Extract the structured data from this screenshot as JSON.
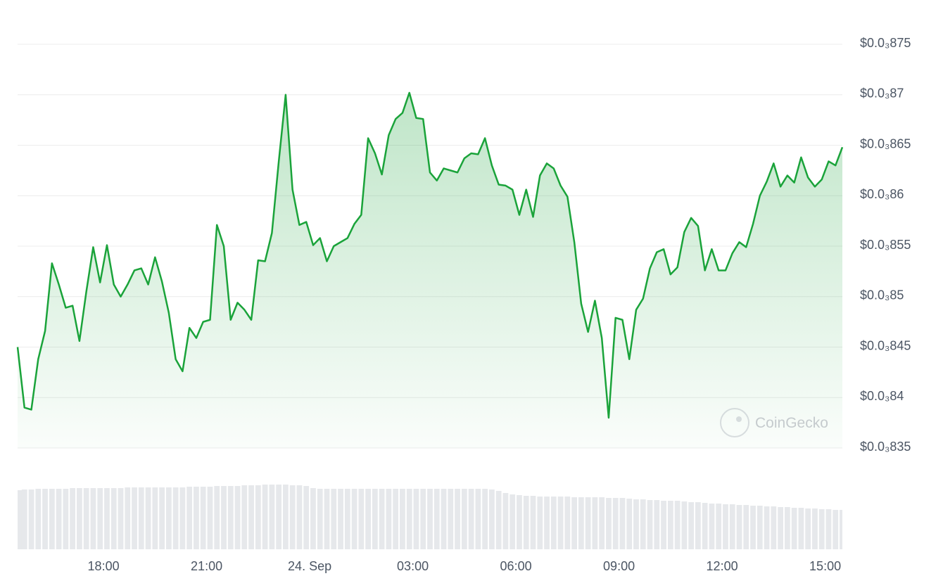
{
  "chart_data": {
    "type": "line",
    "x": [
      15.5,
      15.7,
      15.9,
      16.1,
      16.3,
      16.5,
      16.7,
      16.9,
      17.1,
      17.3,
      17.5,
      17.7,
      17.9,
      18.1,
      18.3,
      18.5,
      18.7,
      18.9,
      19.1,
      19.3,
      19.5,
      19.7,
      19.9,
      20.1,
      20.3,
      20.5,
      20.7,
      20.9,
      21.1,
      21.3,
      21.5,
      21.7,
      21.9,
      22.1,
      22.3,
      22.5,
      22.7,
      22.9,
      23.1,
      23.3,
      23.5,
      23.7,
      23.9,
      24.1,
      24.3,
      24.5,
      24.7,
      24.9,
      25.1,
      25.3,
      25.5,
      25.7,
      25.9,
      26.1,
      26.3,
      26.5,
      26.7,
      26.9,
      27.1,
      27.3,
      27.5,
      27.7,
      27.9,
      28.1,
      28.3,
      28.5,
      28.7,
      28.9,
      29.1,
      29.3,
      29.5,
      29.7,
      29.9,
      30.1,
      30.3,
      30.5,
      30.7,
      30.9,
      31.1,
      31.3,
      31.5,
      31.7,
      31.9,
      32.1,
      32.3,
      32.5,
      32.7,
      32.9,
      33.1,
      33.3,
      33.5,
      33.7,
      33.9,
      34.1,
      34.3,
      34.5,
      34.7,
      34.9,
      35.1,
      35.3,
      35.5,
      35.7,
      35.9,
      36.1,
      36.3,
      36.5,
      36.7,
      36.9,
      37.1,
      37.3,
      37.5,
      37.7,
      37.9,
      38.1,
      38.3,
      38.5,
      38.7,
      38.9,
      39.1,
      39.3,
      39.5
    ],
    "values": [
      0.000845,
      0.000839,
      0.0008388,
      0.0008438,
      0.0008466,
      0.0008533,
      0.0008512,
      0.0008489,
      0.0008491,
      0.0008456,
      0.0008505,
      0.0008549,
      0.0008514,
      0.0008551,
      0.0008512,
      0.00085,
      0.0008512,
      0.0008526,
      0.0008528,
      0.0008512,
      0.0008539,
      0.0008515,
      0.0008484,
      0.0008438,
      0.0008426,
      0.0008469,
      0.0008459,
      0.0008475,
      0.0008477,
      0.0008571,
      0.000855,
      0.0008477,
      0.0008494,
      0.0008487,
      0.0008477,
      0.0008536,
      0.0008535,
      0.0008563,
      0.0008634,
      0.00087,
      0.0008606,
      0.0008571,
      0.0008574,
      0.0008551,
      0.0008558,
      0.0008535,
      0.000855,
      0.0008554,
      0.0008558,
      0.0008572,
      0.0008581,
      0.0008657,
      0.0008642,
      0.0008621,
      0.000866,
      0.0008676,
      0.0008682,
      0.0008702,
      0.0008677,
      0.0008676,
      0.0008623,
      0.0008615,
      0.0008627,
      0.0008625,
      0.0008623,
      0.0008637,
      0.0008642,
      0.0008641,
      0.0008657,
      0.000863,
      0.0008611,
      0.000861,
      0.0008606,
      0.0008581,
      0.0008606,
      0.0008579,
      0.000862,
      0.0008632,
      0.0008627,
      0.000861,
      0.0008599,
      0.0008554,
      0.0008493,
      0.0008465,
      0.0008496,
      0.0008459,
      0.000838,
      0.0008479,
      0.0008477,
      0.0008438,
      0.0008487,
      0.0008498,
      0.0008528,
      0.0008544,
      0.0008547,
      0.0008522,
      0.0008529,
      0.0008564,
      0.0008578,
      0.000857,
      0.0008526,
      0.0008547,
      0.0008526,
      0.0008526,
      0.0008543,
      0.0008554,
      0.0008549,
      0.0008572,
      0.00086,
      0.0008614,
      0.0008632,
      0.0008609,
      0.000862,
      0.0008613,
      0.0008638,
      0.0008618,
      0.0008609,
      0.0008616,
      0.0008634,
      0.000863,
      0.0008648
    ],
    "volume": [
      84,
      85,
      85,
      86,
      86,
      86,
      86,
      86,
      87,
      87,
      87,
      87,
      87,
      87,
      87,
      87,
      88,
      88,
      88,
      88,
      88,
      88,
      88,
      88,
      88,
      89,
      89,
      89,
      89,
      90,
      90,
      90,
      90,
      91,
      91,
      91,
      92,
      92,
      92,
      92,
      91,
      91,
      90,
      87,
      86,
      86,
      86,
      86,
      86,
      86,
      86,
      86,
      86,
      86,
      86,
      86,
      86,
      86,
      86,
      86,
      86,
      86,
      86,
      86,
      86,
      86,
      86,
      86,
      86,
      85,
      83,
      80,
      78,
      77,
      76,
      76,
      75,
      75,
      75,
      75,
      75,
      74,
      74,
      74,
      74,
      74,
      73,
      73,
      73,
      72,
      71,
      71,
      70,
      70,
      69,
      69,
      69,
      68,
      67,
      67,
      66,
      65,
      65,
      64,
      64,
      63,
      63,
      62,
      62,
      61,
      61,
      60,
      60,
      59,
      59,
      58,
      58,
      57,
      57,
      56,
      56
    ],
    "color": "#1aa33a",
    "volume_color": "#e6e8eb",
    "area": true,
    "grid": true,
    "xlim": [
      15.5,
      39.5
    ],
    "xticks": [
      {
        "value": 18,
        "label": "18:00"
      },
      {
        "value": 21,
        "label": "21:00"
      },
      {
        "value": 24,
        "label": "24. Sep"
      },
      {
        "value": 27,
        "label": "03:00"
      },
      {
        "value": 30,
        "label": "06:00"
      },
      {
        "value": 33,
        "label": "09:00"
      },
      {
        "value": 36,
        "label": "12:00"
      },
      {
        "value": 39,
        "label": "15:00"
      }
    ],
    "ylim": [
      0.000835,
      0.000875
    ],
    "yticks": [
      {
        "value": 0.000835,
        "label": "$0.0₃835"
      },
      {
        "value": 0.00084,
        "label": "$0.0₃84"
      },
      {
        "value": 0.000845,
        "label": "$0.0₃845"
      },
      {
        "value": 0.00085,
        "label": "$0.0₃85"
      },
      {
        "value": 0.000855,
        "label": "$0.0₃855"
      },
      {
        "value": 0.00086,
        "label": "$0.0₃86"
      },
      {
        "value": 0.000865,
        "label": "$0.0₃865"
      },
      {
        "value": 0.00087,
        "label": "$0.0₃87"
      },
      {
        "value": 0.000875,
        "label": "$0.0₃875"
      }
    ],
    "watermark": "CoinGecko"
  }
}
